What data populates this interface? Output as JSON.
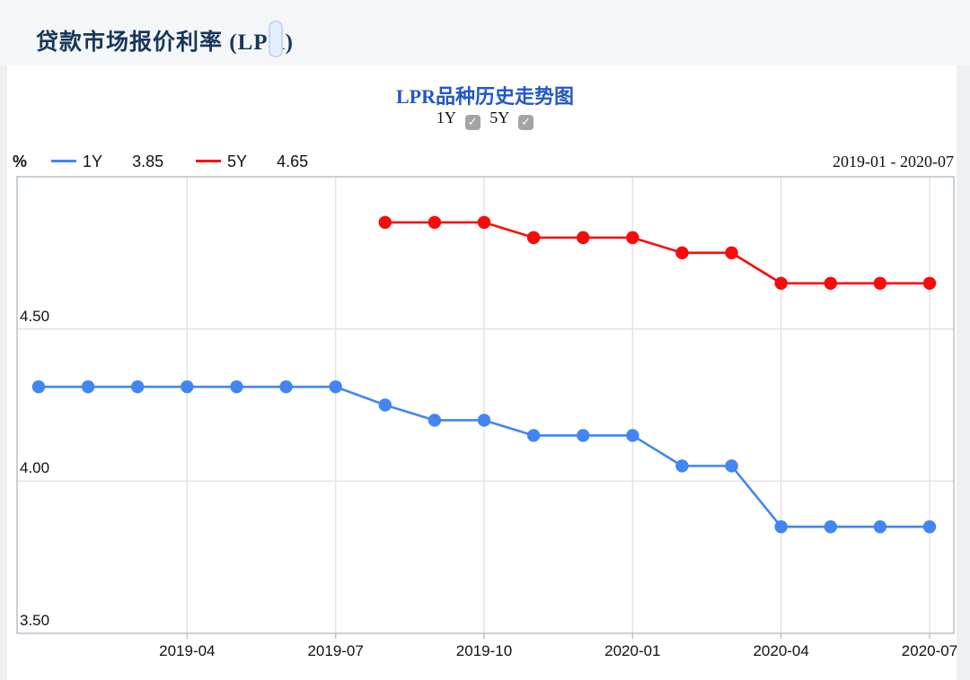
{
  "page": {
    "header": {
      "title": "贷款市场报价利率 (LPR)"
    },
    "chart_header": {
      "title": "LPR品种历史走势图",
      "toggles": [
        {
          "label": "1Y",
          "checked": true,
          "check_glyph": "✓"
        },
        {
          "label": "5Y",
          "checked": true,
          "check_glyph": "✓"
        }
      ]
    },
    "legend": {
      "unit": "%",
      "items": [
        {
          "label": "1Y",
          "value": "3.85",
          "color": "#4285f4"
        },
        {
          "label": "5Y",
          "value": "4.65",
          "color": "#f80b0b"
        }
      ],
      "date_range": "2019-01 - 2020-07"
    }
  },
  "chart_data": {
    "type": "line",
    "title": "LPR品种历史走势图",
    "unit": "%",
    "x": [
      "2019-01",
      "2019-02",
      "2019-03",
      "2019-04",
      "2019-05",
      "2019-06",
      "2019-07",
      "2019-08",
      "2019-09",
      "2019-10",
      "2019-11",
      "2019-12",
      "2020-01",
      "2020-02",
      "2020-03",
      "2020-04",
      "2020-05",
      "2020-06",
      "2020-07"
    ],
    "x_ticks": [
      {
        "label": "2019-04",
        "index": 3
      },
      {
        "label": "2019-07",
        "index": 6
      },
      {
        "label": "2019-10",
        "index": 9
      },
      {
        "label": "2020-01",
        "index": 12
      },
      {
        "label": "2020-04",
        "index": 15
      },
      {
        "label": "2020-07",
        "index": 18
      }
    ],
    "y_ticks": [
      {
        "label": "4.50",
        "value": 4.5
      },
      {
        "label": "4.00",
        "value": 4.0
      },
      {
        "label": "3.50",
        "value": 3.5
      }
    ],
    "ylim": [
      3.5,
      5.0
    ],
    "grid": true,
    "legend_position": "top-left",
    "series": [
      {
        "name": "1Y",
        "color": "#4285f4",
        "values": [
          4.31,
          4.31,
          4.31,
          4.31,
          4.31,
          4.31,
          4.31,
          4.25,
          4.2,
          4.2,
          4.15,
          4.15,
          4.15,
          4.05,
          4.05,
          3.85,
          3.85,
          3.85,
          3.85
        ]
      },
      {
        "name": "5Y",
        "color": "#f80b0b",
        "values": [
          null,
          null,
          null,
          null,
          null,
          null,
          null,
          4.85,
          4.85,
          4.85,
          4.8,
          4.8,
          4.8,
          4.75,
          4.75,
          4.65,
          4.65,
          4.65,
          4.65
        ]
      }
    ],
    "colors": {
      "grid": "#e3e3e3",
      "plot_border": "#b7c0cc",
      "title": "#2257c5"
    }
  }
}
